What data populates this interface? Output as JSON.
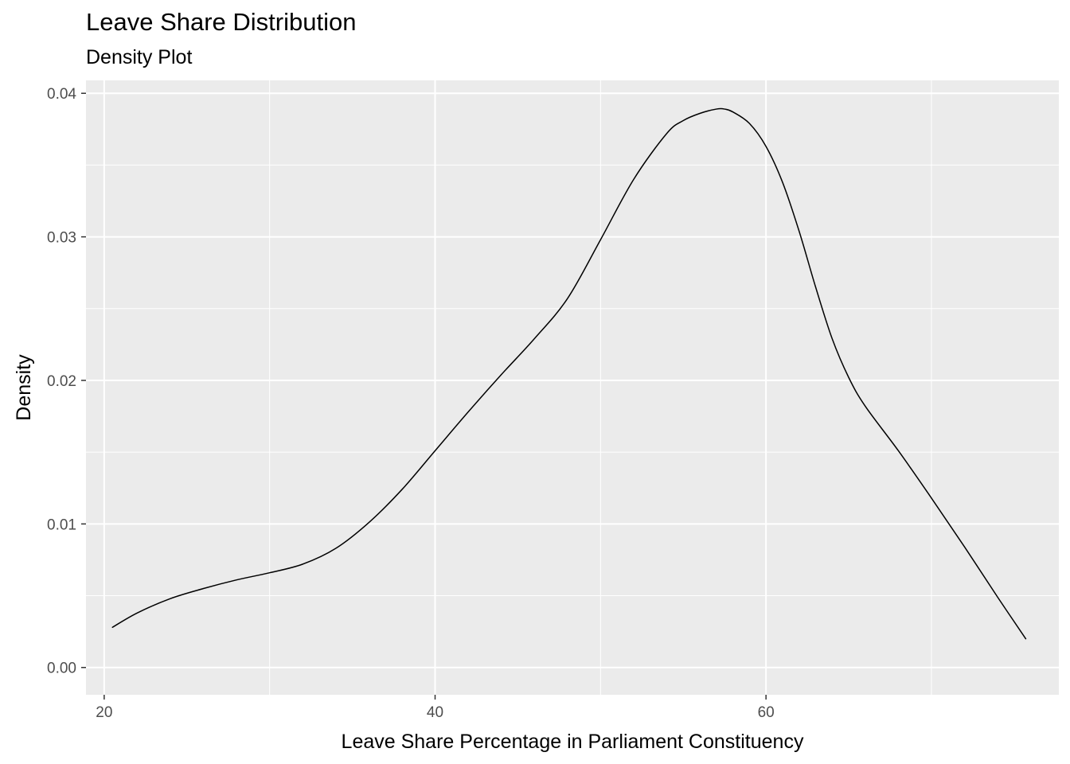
{
  "chart_data": {
    "type": "line",
    "title": "Leave Share Distribution",
    "subtitle": "Density Plot",
    "xlabel": "Leave Share Percentage in Parliament Constituency",
    "ylabel": "Density",
    "xlim": [
      18.9,
      77.7
    ],
    "ylim": [
      -0.0019,
      0.0409
    ],
    "x_ticks": [
      20,
      40,
      60
    ],
    "x_tick_labels": [
      "20",
      "40",
      "60"
    ],
    "x_minor_ticks": [
      30,
      50,
      70
    ],
    "y_ticks": [
      0.0,
      0.01,
      0.02,
      0.03,
      0.04
    ],
    "y_tick_labels": [
      "0.00",
      "0.01",
      "0.02",
      "0.03",
      "0.04"
    ],
    "y_minor_ticks": [
      0.005,
      0.015,
      0.025,
      0.035
    ],
    "grid": true,
    "panel_background": "#ebebeb",
    "grid_color": "#ffffff",
    "line_color": "#000000",
    "x": [
      20.5,
      22,
      24,
      26,
      28,
      30,
      32,
      34,
      36,
      38,
      40,
      42,
      44,
      46,
      48,
      50,
      52,
      54,
      55,
      56,
      57,
      57.5,
      58,
      59,
      60,
      61,
      62,
      63,
      64,
      65,
      66,
      68,
      70,
      72,
      74,
      75.7
    ],
    "y": [
      0.0028,
      0.0038,
      0.0048,
      0.0055,
      0.0061,
      0.0066,
      0.0072,
      0.0083,
      0.0101,
      0.0124,
      0.0151,
      0.0178,
      0.0204,
      0.0229,
      0.0257,
      0.0298,
      0.034,
      0.0372,
      0.0381,
      0.0386,
      0.0389,
      0.0389,
      0.0387,
      0.0379,
      0.0363,
      0.0338,
      0.0304,
      0.0265,
      0.0229,
      0.0202,
      0.0182,
      0.0151,
      0.0118,
      0.0084,
      0.0049,
      0.002
    ]
  }
}
